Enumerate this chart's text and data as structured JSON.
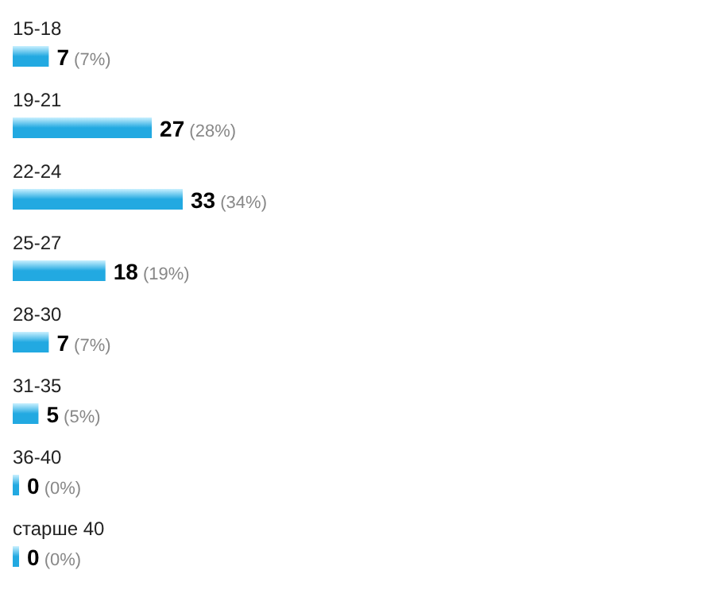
{
  "chart_data": {
    "type": "bar",
    "orientation": "horizontal",
    "categories": [
      "15-18",
      "19-21",
      "22-24",
      "25-27",
      "28-30",
      "31-35",
      "36-40",
      "старше 40"
    ],
    "values": [
      7,
      27,
      33,
      18,
      7,
      5,
      0,
      0
    ],
    "value_labels": [
      "7 (7%)",
      "27 (28%)",
      "33 (34%)",
      "18 (19%)",
      "7 (7%)",
      "5 (5%)",
      "0 (0%)",
      "0 (0%)"
    ],
    "color": "#22a9e1"
  }
}
